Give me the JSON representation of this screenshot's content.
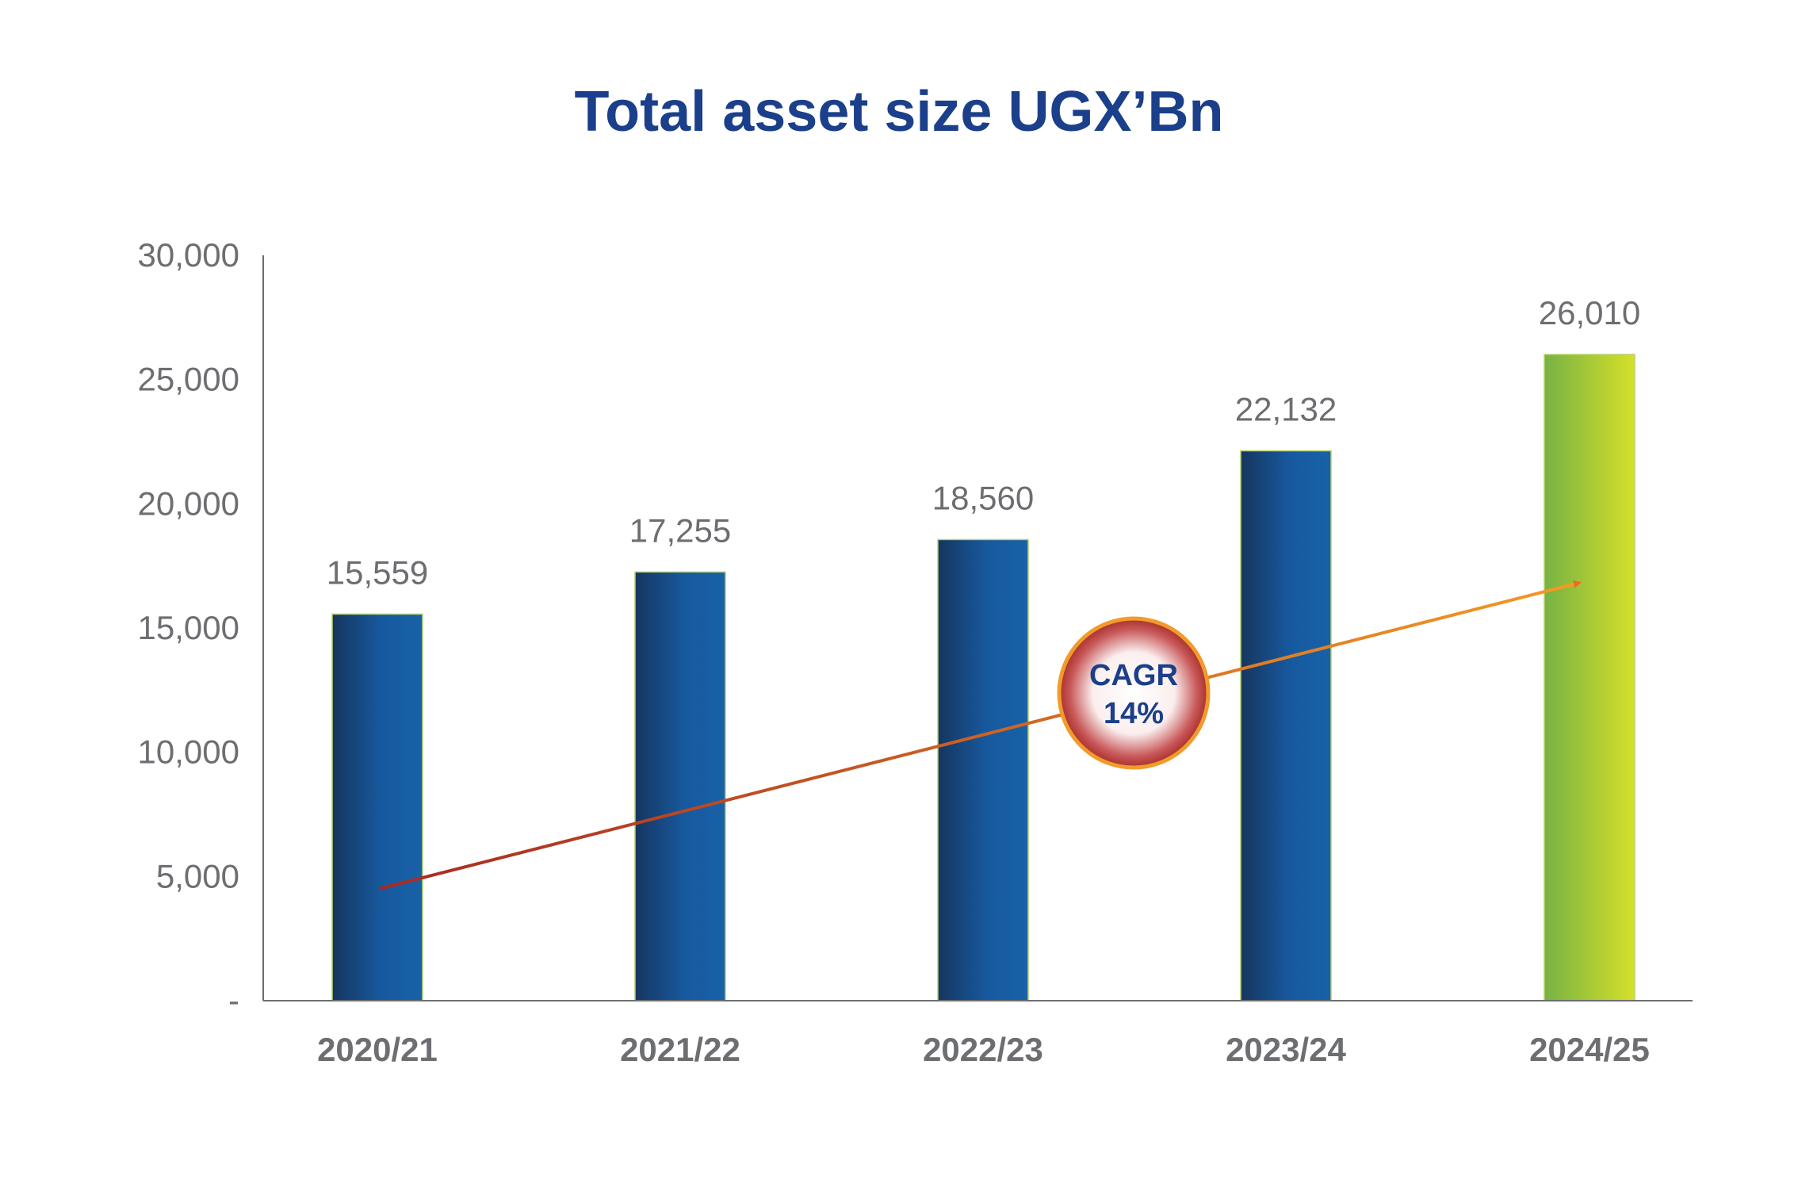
{
  "chart_data": {
    "type": "bar",
    "title": "Total asset size UGX’Bn",
    "categories": [
      "2020/21",
      "2021/22",
      "2022/23",
      "2023/24",
      "2024/25"
    ],
    "values": [
      15559,
      17255,
      18560,
      22132,
      26010
    ],
    "value_labels": [
      "15,559",
      "17,255",
      "18,560",
      "22,132",
      "26,010"
    ],
    "ylim": [
      0,
      30000
    ],
    "yticks": [
      0,
      5000,
      10000,
      15000,
      20000,
      25000,
      30000
    ],
    "ytick_labels": [
      "-",
      "5,000",
      "10,000",
      "15,000",
      "20,000",
      "25,000",
      "30,000"
    ],
    "grid": false,
    "xlabel": "",
    "ylabel": "",
    "bar_colors": [
      "#1a4f8f",
      "#1a4f8f",
      "#1a4f8f",
      "#1a4f8f",
      "#9cc43a"
    ],
    "annotation": {
      "line1": "CAGR",
      "line2": "14%",
      "arrow_colors": [
        "#a72a22",
        "#f59a23"
      ]
    }
  }
}
